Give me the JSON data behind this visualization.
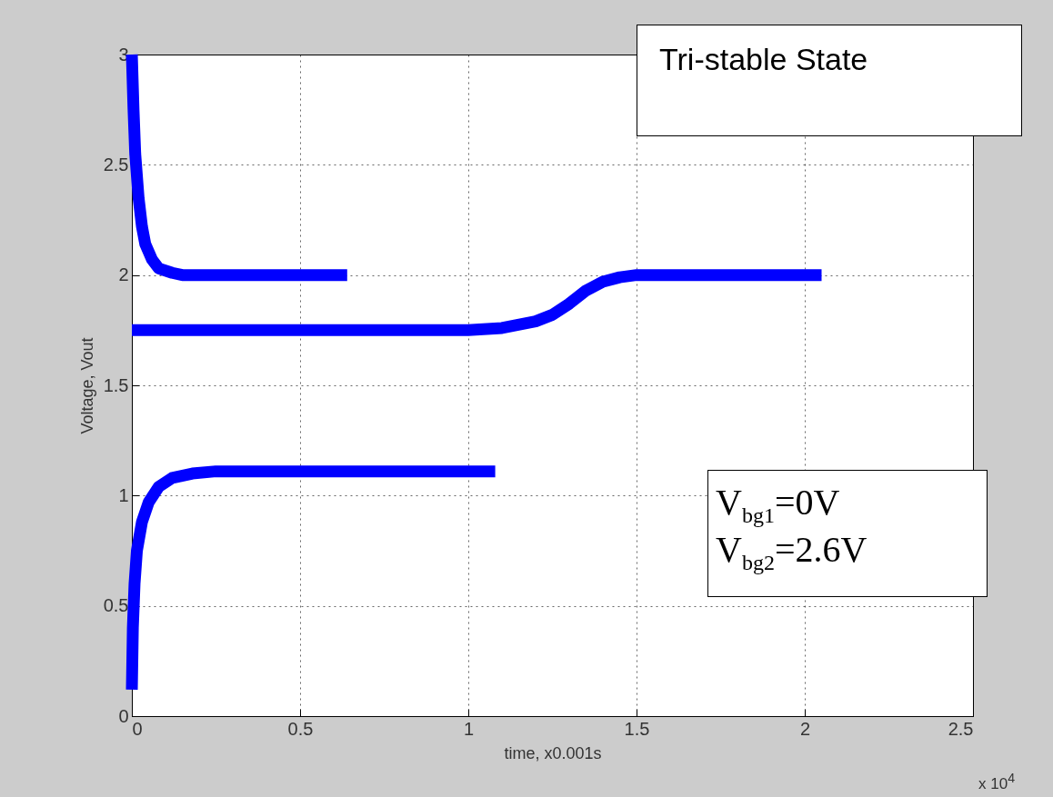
{
  "chart_data": {
    "type": "line",
    "xlabel": "time, x0.001s",
    "ylabel": "Voltage, Vout",
    "xlim": [
      0,
      2.5
    ],
    "ylim": [
      0,
      3
    ],
    "xticks": [
      0,
      0.5,
      1,
      1.5,
      2,
      2.5
    ],
    "yticks": [
      0,
      0.5,
      1,
      1.5,
      2,
      2.5,
      3
    ],
    "grid": true,
    "legend": false,
    "line_style": "solid",
    "series": [
      {
        "color": "#0000ff",
        "x": [
          0,
          0.005,
          0.01,
          0.02,
          0.03,
          0.04,
          0.06,
          0.08,
          0.12,
          0.15,
          0.64
        ],
        "values": [
          3,
          2.75,
          2.55,
          2.35,
          2.22,
          2.14,
          2.07,
          2.03,
          2.01,
          2.0,
          2.0
        ]
      },
      {
        "color": "#0000ff",
        "x": [
          0,
          1,
          1.1,
          1.2,
          1.25,
          1.3,
          1.35,
          1.4,
          1.45,
          1.5,
          2.05
        ],
        "values": [
          1.75,
          1.75,
          1.76,
          1.79,
          1.82,
          1.87,
          1.93,
          1.97,
          1.99,
          2.0,
          2.0
        ]
      },
      {
        "color": "#0000ff",
        "x": [
          0,
          0.003,
          0.008,
          0.015,
          0.03,
          0.05,
          0.08,
          0.12,
          0.18,
          0.25,
          1.08
        ],
        "values": [
          0.12,
          0.4,
          0.6,
          0.75,
          0.88,
          0.97,
          1.04,
          1.08,
          1.1,
          1.11,
          1.11
        ]
      }
    ],
    "annotations": [
      "Tri-stable State",
      "V$_{bg1}$=0V\nV$_{bg2}$=2.6V",
      "x 10$^{4}$"
    ]
  }
}
